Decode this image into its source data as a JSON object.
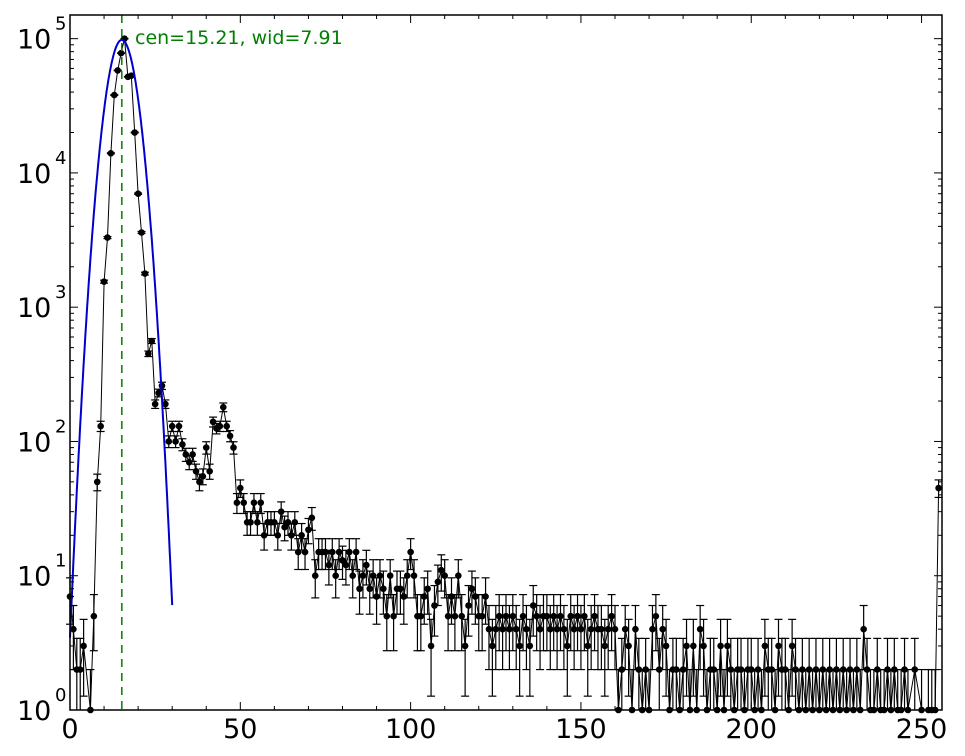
{
  "chart_data": {
    "type": "scatter",
    "title": "",
    "xlabel": "",
    "ylabel": "",
    "xlim": [
      0,
      256
    ],
    "ylim": [
      1,
      150000
    ],
    "yscale": "log",
    "grid": false,
    "annotation": "cen=15.21, wid=7.91",
    "x_ticks": [
      {
        "value": 0,
        "label": "0"
      },
      {
        "value": 50,
        "label": "50"
      },
      {
        "value": 100,
        "label": "100"
      },
      {
        "value": 150,
        "label": "150"
      },
      {
        "value": 200,
        "label": "200"
      },
      {
        "value": 250,
        "label": "250"
      }
    ],
    "y_ticks": [
      {
        "value": 1,
        "base": "10",
        "exp": "0"
      },
      {
        "value": 10,
        "base": "10",
        "exp": "1"
      },
      {
        "value": 100,
        "base": "10",
        "exp": "2"
      },
      {
        "value": 1000,
        "base": "10",
        "exp": "3"
      },
      {
        "value": 10000,
        "base": "10",
        "exp": "4"
      },
      {
        "value": 100000,
        "base": "10",
        "exp": "5"
      }
    ],
    "fit_center": 15.21,
    "fit_width": 7.91,
    "colors": {
      "data": "#000000",
      "fit": "#0000cc",
      "center_line": "#008000",
      "annotation": "#008000"
    },
    "series": [
      {
        "type": "errorbar-points",
        "points": [
          [
            0,
            7
          ],
          [
            1,
            4
          ],
          [
            2,
            2
          ],
          [
            3,
            2
          ],
          [
            4,
            3
          ],
          [
            6,
            1
          ],
          [
            7,
            5
          ],
          [
            8,
            50
          ],
          [
            9,
            130
          ],
          [
            10,
            1550
          ],
          [
            11,
            3300
          ],
          [
            12,
            14000
          ],
          [
            13,
            38000
          ],
          [
            14,
            58000
          ],
          [
            15,
            78000
          ],
          [
            16,
            100000
          ],
          [
            17,
            52000
          ],
          [
            18,
            53000
          ],
          [
            19,
            20000
          ],
          [
            20,
            7000
          ],
          [
            21,
            3600
          ],
          [
            22,
            1780
          ],
          [
            23,
            450
          ],
          [
            24,
            560
          ],
          [
            25,
            190
          ],
          [
            26,
            230
          ],
          [
            27,
            260
          ],
          [
            28,
            190
          ],
          [
            29,
            100
          ],
          [
            30,
            130
          ],
          [
            31,
            100
          ],
          [
            32,
            130
          ],
          [
            33,
            95
          ],
          [
            34,
            80
          ],
          [
            35,
            70
          ],
          [
            36,
            80
          ],
          [
            37,
            60
          ],
          [
            38,
            50
          ],
          [
            39,
            55
          ],
          [
            40,
            90
          ],
          [
            41,
            60
          ],
          [
            42,
            140
          ],
          [
            43,
            125
          ],
          [
            44,
            130
          ],
          [
            45,
            180
          ],
          [
            46,
            130
          ],
          [
            47,
            110
          ],
          [
            48,
            90
          ],
          [
            49,
            35
          ],
          [
            50,
            45
          ],
          [
            51,
            35
          ],
          [
            52,
            25
          ],
          [
            53,
            25
          ],
          [
            54,
            35
          ],
          [
            55,
            25
          ],
          [
            56,
            35
          ],
          [
            57,
            20
          ],
          [
            58,
            25
          ],
          [
            59,
            25
          ],
          [
            60,
            25
          ],
          [
            61,
            20
          ],
          [
            62,
            30
          ],
          [
            63,
            23
          ],
          [
            64,
            25
          ],
          [
            65,
            20
          ],
          [
            66,
            25
          ],
          [
            67,
            15
          ],
          [
            68,
            20
          ],
          [
            69,
            15
          ],
          [
            70,
            22
          ],
          [
            71,
            27
          ],
          [
            72,
            10
          ],
          [
            73,
            15
          ],
          [
            74,
            15
          ],
          [
            75,
            15
          ],
          [
            76,
            12
          ],
          [
            77,
            15
          ],
          [
            78,
            10
          ],
          [
            79,
            15
          ],
          [
            80,
            13
          ],
          [
            81,
            12
          ],
          [
            82,
            15
          ],
          [
            83,
            10
          ],
          [
            84,
            15
          ],
          [
            85,
            8
          ],
          [
            86,
            10
          ],
          [
            87,
            12
          ],
          [
            88,
            8
          ],
          [
            89,
            10
          ],
          [
            90,
            7
          ],
          [
            91,
            10
          ],
          [
            92,
            8
          ],
          [
            93,
            5
          ],
          [
            94,
            10
          ],
          [
            95,
            5
          ],
          [
            96,
            8
          ],
          [
            97,
            8
          ],
          [
            98,
            7
          ],
          [
            99,
            10
          ],
          [
            100,
            15
          ],
          [
            101,
            10
          ],
          [
            102,
            5
          ],
          [
            103,
            5
          ],
          [
            104,
            7
          ],
          [
            105,
            8
          ],
          [
            106,
            3
          ],
          [
            107,
            6
          ],
          [
            108,
            9
          ],
          [
            109,
            11
          ],
          [
            110,
            10
          ],
          [
            111,
            5
          ],
          [
            112,
            7
          ],
          [
            113,
            5
          ],
          [
            114,
            10
          ],
          [
            115,
            5
          ],
          [
            116,
            3
          ],
          [
            117,
            6
          ],
          [
            118,
            8
          ],
          [
            119,
            7
          ],
          [
            120,
            5
          ],
          [
            121,
            5
          ],
          [
            122,
            7
          ],
          [
            123,
            4
          ],
          [
            124,
            3
          ],
          [
            125,
            4
          ],
          [
            126,
            5
          ],
          [
            127,
            4
          ],
          [
            128,
            5
          ],
          [
            129,
            4
          ],
          [
            130,
            5
          ],
          [
            131,
            4
          ],
          [
            132,
            3
          ],
          [
            133,
            5
          ],
          [
            134,
            4
          ],
          [
            135,
            3
          ],
          [
            136,
            6
          ],
          [
            137,
            5
          ],
          [
            138,
            4
          ],
          [
            139,
            5
          ],
          [
            140,
            5
          ],
          [
            141,
            4
          ],
          [
            142,
            5
          ],
          [
            143,
            4
          ],
          [
            144,
            5
          ],
          [
            145,
            4
          ],
          [
            146,
            3
          ],
          [
            147,
            5
          ],
          [
            148,
            4
          ],
          [
            149,
            5
          ],
          [
            150,
            4
          ],
          [
            151,
            5
          ],
          [
            152,
            3
          ],
          [
            153,
            4
          ],
          [
            154,
            5
          ],
          [
            155,
            4
          ],
          [
            156,
            4
          ],
          [
            157,
            3
          ],
          [
            158,
            4
          ],
          [
            159,
            5
          ],
          [
            160,
            4
          ],
          [
            161,
            1
          ],
          [
            162,
            2
          ],
          [
            163,
            4
          ],
          [
            164,
            3
          ],
          [
            165,
            1
          ],
          [
            166,
            4
          ],
          [
            167,
            2
          ],
          [
            168,
            1
          ],
          [
            169,
            2
          ],
          [
            170,
            1
          ],
          [
            171,
            4
          ],
          [
            172,
            5
          ],
          [
            173,
            2
          ],
          [
            174,
            4
          ],
          [
            175,
            3
          ],
          [
            176,
            1
          ],
          [
            177,
            2
          ],
          [
            178,
            2
          ],
          [
            179,
            1
          ],
          [
            180,
            2
          ],
          [
            181,
            3
          ],
          [
            182,
            1
          ],
          [
            183,
            3
          ],
          [
            184,
            1
          ],
          [
            185,
            4
          ],
          [
            186,
            3
          ],
          [
            187,
            1
          ],
          [
            188,
            2
          ],
          [
            189,
            2
          ],
          [
            190,
            1
          ],
          [
            191,
            3
          ],
          [
            192,
            1
          ],
          [
            193,
            3
          ],
          [
            194,
            2
          ],
          [
            195,
            1
          ],
          [
            196,
            2
          ],
          [
            197,
            2
          ],
          [
            198,
            1
          ],
          [
            199,
            2
          ],
          [
            200,
            2
          ],
          [
            201,
            1
          ],
          [
            202,
            2
          ],
          [
            203,
            1
          ],
          [
            204,
            3
          ],
          [
            205,
            2
          ],
          [
            206,
            2
          ],
          [
            207,
            1
          ],
          [
            208,
            3
          ],
          [
            209,
            2
          ],
          [
            210,
            2
          ],
          [
            211,
            1
          ],
          [
            212,
            3
          ],
          [
            213,
            2
          ],
          [
            214,
            1
          ],
          [
            215,
            2
          ],
          [
            216,
            1
          ],
          [
            217,
            2
          ],
          [
            218,
            1
          ],
          [
            219,
            2
          ],
          [
            220,
            1
          ],
          [
            221,
            2
          ],
          [
            222,
            1
          ],
          [
            223,
            2
          ],
          [
            224,
            1
          ],
          [
            225,
            2
          ],
          [
            226,
            1
          ],
          [
            227,
            2
          ],
          [
            228,
            1
          ],
          [
            229,
            2
          ],
          [
            230,
            1
          ],
          [
            231,
            2
          ],
          [
            232,
            1
          ],
          [
            233,
            4
          ],
          [
            234,
            2
          ],
          [
            235,
            1
          ],
          [
            236,
            1
          ],
          [
            237,
            2
          ],
          [
            238,
            1
          ],
          [
            239,
            1
          ],
          [
            240,
            2
          ],
          [
            241,
            1
          ],
          [
            242,
            2
          ],
          [
            243,
            1
          ],
          [
            244,
            1
          ],
          [
            245,
            2
          ],
          [
            246,
            1
          ],
          [
            248,
            2
          ],
          [
            250,
            1
          ],
          [
            252,
            1
          ],
          [
            253,
            1
          ],
          [
            254,
            1
          ],
          [
            255,
            45
          ]
        ]
      },
      {
        "type": "gaussian-fit",
        "amplitude": 98000,
        "center": 15.21,
        "width": 7.91,
        "x_range": [
          0,
          30
        ]
      }
    ]
  }
}
